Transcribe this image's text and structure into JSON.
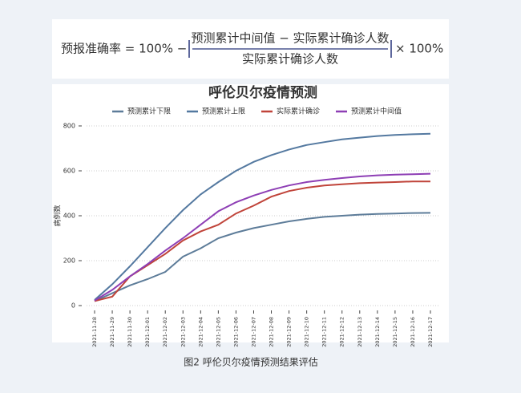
{
  "formula": {
    "lhs": "预报准确率 = 100% −",
    "numerator": "预测累计中间值 − 实际累计确诊人数",
    "denominator": "实际累计确诊人数",
    "rhs": "× 100%"
  },
  "chart_data": {
    "type": "line",
    "title": "呼伦贝尔疫情预测",
    "y_label": "病例数",
    "categories": [
      "2021-11-28",
      "2021-11-29",
      "2021-11-30",
      "2021-12-01",
      "2021-12-02",
      "2021-12-03",
      "2021-12-04",
      "2021-12-05",
      "2021-12-06",
      "2021-12-07",
      "2021-12-08",
      "2021-12-09",
      "2021-12-10",
      "2021-12-11",
      "2021-12-12",
      "2021-12-13",
      "2021-12-14",
      "2021-12-15",
      "2021-12-16",
      "2021-12-17"
    ],
    "series": [
      {
        "name": "预测累计下限",
        "color": "#5d7c99",
        "values": [
          20,
          55,
          90,
          118,
          150,
          218,
          255,
          300,
          325,
          345,
          360,
          375,
          386,
          395,
          400,
          405,
          408,
          410,
          412,
          413
        ]
      },
      {
        "name": "预测累计上限",
        "color": "#5479a0",
        "values": [
          25,
          95,
          175,
          260,
          345,
          425,
          495,
          550,
          600,
          640,
          670,
          695,
          715,
          728,
          740,
          748,
          755,
          760,
          763,
          765
        ]
      },
      {
        "name": "实际累计确诊",
        "color": "#c0443a",
        "values": [
          20,
          40,
          130,
          180,
          230,
          290,
          330,
          360,
          410,
          445,
          485,
          510,
          525,
          535,
          540,
          545,
          548,
          550,
          553,
          553
        ]
      },
      {
        "name": "预测累计中间值",
        "color": "#8e3fb5",
        "values": [
          22,
          70,
          130,
          185,
          245,
          300,
          360,
          420,
          460,
          490,
          515,
          535,
          550,
          560,
          568,
          575,
          580,
          583,
          585,
          587
        ]
      }
    ],
    "ylim": [
      0,
      800
    ],
    "yticks": [
      0,
      200,
      400,
      600,
      800
    ],
    "grid": true
  },
  "caption": "图2 呼伦贝尔疫情预测结果评估"
}
